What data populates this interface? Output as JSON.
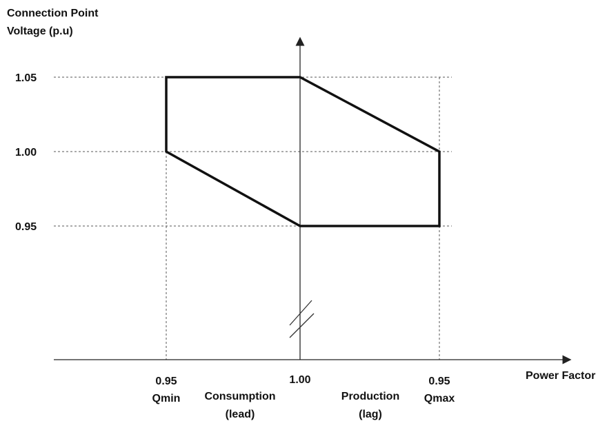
{
  "y_axis_title": [
    "Connection Point",
    "Voltage (p.u)"
  ],
  "x_axis_title": "Power Factor",
  "y_ticks": [
    "1.05",
    "1.00",
    "0.95"
  ],
  "x_ticks": [
    {
      "value": "0.95",
      "sub": "Qmin"
    },
    {
      "value": "1.00",
      "sub": ""
    },
    {
      "value": "0.95",
      "sub": "Qmax"
    }
  ],
  "region_labels": {
    "consumption": [
      "Consumption",
      "(lead)"
    ],
    "production": [
      "Production",
      "(lag)"
    ]
  },
  "operating_region": {
    "description_points": [
      {
        "pf_side": "Qmin",
        "voltage": 1.05
      },
      {
        "pf_side": "unity",
        "voltage": 1.05
      },
      {
        "pf_side": "Qmax",
        "voltage": 1.0
      },
      {
        "pf_side": "Qmax",
        "voltage": 0.95
      },
      {
        "pf_side": "unity",
        "voltage": 0.95
      },
      {
        "pf_side": "Qmin",
        "voltage": 1.0
      }
    ]
  }
}
